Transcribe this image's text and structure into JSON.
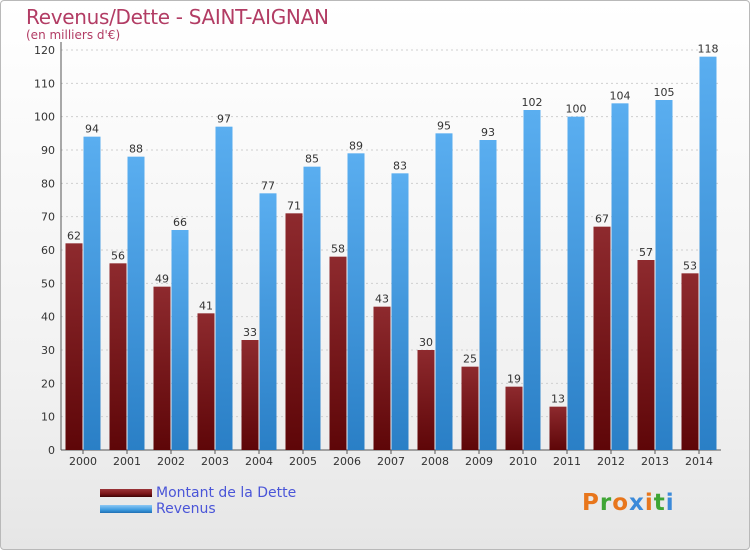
{
  "header": {
    "title": "Revenus/Dette - SAINT-AIGNAN",
    "subtitle": "(en milliers d'€)"
  },
  "legend": {
    "dette_label": "Montant de la Dette",
    "revenus_label": "Revenus"
  },
  "logo": {
    "letters": [
      "P",
      "r",
      "o",
      "x",
      "i",
      "t",
      "i"
    ]
  },
  "colors": {
    "dette": "#7a1518",
    "revenus": "#3d9be0",
    "title": "#b23c64",
    "legend_text": "#4a55d8",
    "logo_letters": [
      "#e8761c",
      "#3fa535",
      "#e8761c",
      "#3b8ad9",
      "#e8761c",
      "#3fa535",
      "#3b8ad9"
    ]
  },
  "chart_data": {
    "type": "bar",
    "title": "Revenus/Dette - SAINT-AIGNAN",
    "ylabel": "(en milliers d'€)",
    "xlabel": "",
    "categories": [
      "2000",
      "2001",
      "2002",
      "2003",
      "2004",
      "2005",
      "2006",
      "2007",
      "2008",
      "2009",
      "2010",
      "2011",
      "2012",
      "2013",
      "2014"
    ],
    "series": [
      {
        "name": "Montant de la Dette",
        "values": [
          62,
          56,
          49,
          41,
          33,
          71,
          58,
          43,
          30,
          25,
          19,
          13,
          67,
          57,
          53
        ]
      },
      {
        "name": "Revenus",
        "values": [
          94,
          88,
          66,
          97,
          77,
          85,
          89,
          83,
          95,
          93,
          102,
          100,
          104,
          105,
          118
        ]
      }
    ],
    "ylim": [
      0,
      120
    ],
    "yticks": [
      0,
      10,
      20,
      30,
      40,
      50,
      60,
      70,
      80,
      90,
      100,
      110,
      120
    ],
    "grid": true,
    "legend_position": "bottom-left"
  }
}
